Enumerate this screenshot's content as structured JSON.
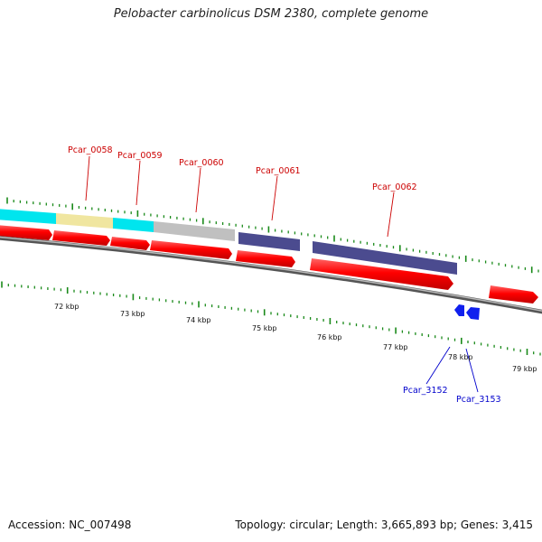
{
  "title": "Pelobacter carbinolicus DSM 2380, complete genome",
  "footer": {
    "accession": "Accession: NC_007498",
    "stats": "Topology: circular; Length: 3,665,893 bp; Genes: 3,415"
  },
  "colors": {
    "top_strand_labels": "#cc0000",
    "bottom_strand_labels": "#0000cc",
    "cds_forward": "#ff0000",
    "tick_marks": "#1a8a1a",
    "backbone": "#888888"
  },
  "kbp_labels": [
    "72 kbp",
    "73 kbp",
    "74 kbp",
    "75 kbp",
    "76 kbp",
    "77 kbp",
    "78 kbp",
    "79 kbp"
  ],
  "top_genes": [
    {
      "name": "Pcar_0058",
      "color": "#f0e6a0"
    },
    {
      "name": "Pcar_0059",
      "color": "#00e5ee"
    },
    {
      "name": "Pcar_0060",
      "color": "#c0c0c0"
    },
    {
      "name": "Pcar_0061",
      "color": "#4b4b8f"
    },
    {
      "name": "Pcar_0062",
      "color": "#4b4b8f"
    }
  ],
  "bottom_genes": [
    {
      "name": "Pcar_3152",
      "color": "#1020ee"
    },
    {
      "name": "Pcar_3153",
      "color": "#1020ee"
    }
  ]
}
